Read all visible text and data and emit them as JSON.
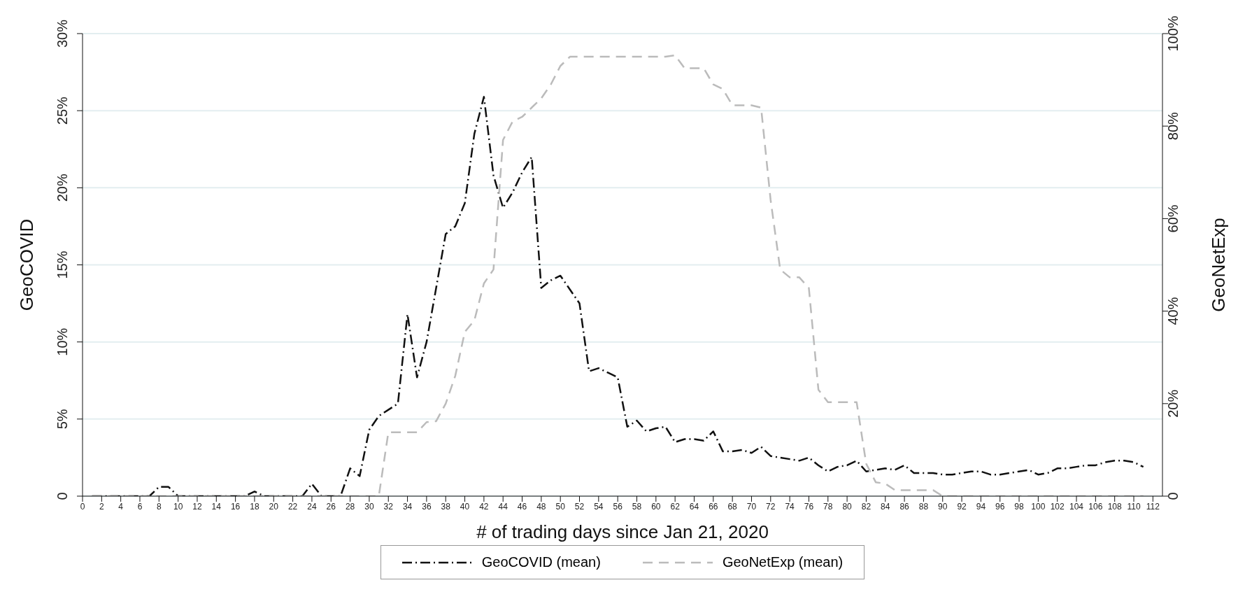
{
  "chart_data": {
    "type": "line",
    "xlabel": "# of trading days since Jan 21, 2020",
    "ylabel": "GeoCOVID",
    "y2label": "GeoNetExp",
    "x": [
      1,
      2,
      3,
      4,
      5,
      6,
      7,
      8,
      9,
      10,
      11,
      12,
      13,
      14,
      15,
      16,
      17,
      18,
      19,
      20,
      21,
      22,
      23,
      24,
      25,
      26,
      27,
      28,
      29,
      30,
      31,
      32,
      33,
      34,
      35,
      36,
      37,
      38,
      39,
      40,
      41,
      42,
      43,
      44,
      45,
      46,
      47,
      48,
      49,
      50,
      51,
      52,
      53,
      54,
      55,
      56,
      57,
      58,
      59,
      60,
      61,
      62,
      63,
      64,
      65,
      66,
      67,
      68,
      69,
      70,
      71,
      72,
      73,
      74,
      75,
      76,
      77,
      78,
      79,
      80,
      81,
      82,
      83,
      84,
      85,
      86,
      87,
      88,
      89,
      90,
      91,
      92,
      93,
      94,
      95,
      96,
      97,
      98,
      99,
      100,
      101,
      102,
      103,
      104,
      105,
      106,
      107,
      108,
      109,
      110,
      111
    ],
    "series": [
      {
        "name": "GeoCOVID (mean)",
        "color": "#111111",
        "line_style": "dashdot",
        "values": [
          0,
          0,
          0,
          0,
          0,
          0,
          0,
          0.6,
          0.6,
          0,
          0,
          0,
          0,
          0,
          0,
          0,
          0,
          0.3,
          0,
          0,
          0,
          0,
          0,
          0.8,
          0,
          0,
          0,
          1.8,
          1.3,
          4.3,
          5.2,
          5.6,
          6.0,
          11.8,
          7.7,
          10.0,
          13.5,
          17.0,
          17.5,
          19.0,
          23.5,
          25.9,
          20.8,
          18.7,
          19.7,
          21.0,
          22.0,
          13.5,
          14.0,
          14.3,
          13.4,
          12.5,
          8.1,
          8.3,
          8.0,
          7.7,
          4.5,
          4.9,
          4.2,
          4.4,
          4.5,
          3.5,
          3.7,
          3.7,
          3.6,
          4.2,
          2.9,
          2.9,
          3.0,
          2.8,
          3.2,
          2.6,
          2.5,
          2.4,
          2.3,
          2.5,
          2.0,
          1.6,
          1.9,
          2.0,
          2.3,
          1.6,
          1.7,
          1.8,
          1.7,
          2.0,
          1.5,
          1.5,
          1.5,
          1.4,
          1.4,
          1.5,
          1.6,
          1.6,
          1.4,
          1.4,
          1.5,
          1.6,
          1.7,
          1.4,
          1.5,
          1.8,
          1.8,
          1.9,
          2.0,
          2.0,
          2.2,
          2.3,
          2.3,
          2.2,
          1.9
        ]
      },
      {
        "name": "GeoNetExp (mean)",
        "color": "#bbbbbb",
        "line_style": "dashed",
        "axis": "y2",
        "values": [
          0,
          0,
          0,
          0,
          0,
          0,
          0,
          0,
          0,
          0,
          0,
          0,
          0,
          0,
          0,
          0,
          0,
          0,
          0,
          0,
          0,
          0,
          0,
          0,
          0,
          0,
          0,
          0,
          0,
          0,
          0,
          13.8,
          13.8,
          13.8,
          13.8,
          16,
          16.2,
          20,
          26,
          35.5,
          38,
          46,
          49,
          77,
          81,
          82,
          84,
          86,
          89,
          93,
          95,
          95,
          95,
          95,
          95,
          95,
          95,
          95,
          95,
          95,
          95,
          95.3,
          92.5,
          92.5,
          92.5,
          89,
          88,
          84.5,
          84.5,
          84.5,
          84,
          64,
          49,
          47.3,
          47.3,
          45,
          23,
          20.3,
          20.3,
          20.3,
          20.3,
          7,
          3,
          2.7,
          1.3,
          1.3,
          1.3,
          1.3,
          1.3,
          0,
          0,
          0,
          0,
          0,
          0,
          0,
          0,
          0,
          0,
          0,
          0,
          0,
          0,
          0,
          0,
          0,
          0,
          0,
          0,
          0,
          0
        ]
      }
    ],
    "xlim": [
      0,
      113
    ],
    "xticks": [
      0,
      2,
      4,
      6,
      8,
      10,
      12,
      14,
      16,
      18,
      20,
      22,
      24,
      26,
      28,
      30,
      32,
      34,
      36,
      38,
      40,
      42,
      44,
      46,
      48,
      50,
      52,
      54,
      56,
      58,
      60,
      62,
      64,
      66,
      68,
      70,
      72,
      74,
      76,
      78,
      80,
      82,
      84,
      86,
      88,
      90,
      92,
      94,
      96,
      98,
      100,
      102,
      104,
      106,
      108,
      110,
      112
    ],
    "ylim": [
      0,
      30
    ],
    "yticks": [
      0,
      {
        "value": 5,
        "label": "5%"
      },
      {
        "value": 10,
        "label": "10%"
      },
      {
        "value": 15,
        "label": "15%"
      },
      {
        "value": 20,
        "label": "20%"
      },
      {
        "value": 25,
        "label": "25%"
      },
      {
        "value": 30,
        "label": "30%"
      }
    ],
    "y2lim": [
      0,
      100
    ],
    "y2ticks": [
      0,
      {
        "value": 20,
        "label": "20%"
      },
      {
        "value": 40,
        "label": "40%"
      },
      {
        "value": 60,
        "label": "60%"
      },
      {
        "value": 80,
        "label": "80%"
      },
      {
        "value": 100,
        "label": "100%"
      }
    ],
    "grid": "y",
    "legend": "bottom",
    "marker": "none"
  }
}
